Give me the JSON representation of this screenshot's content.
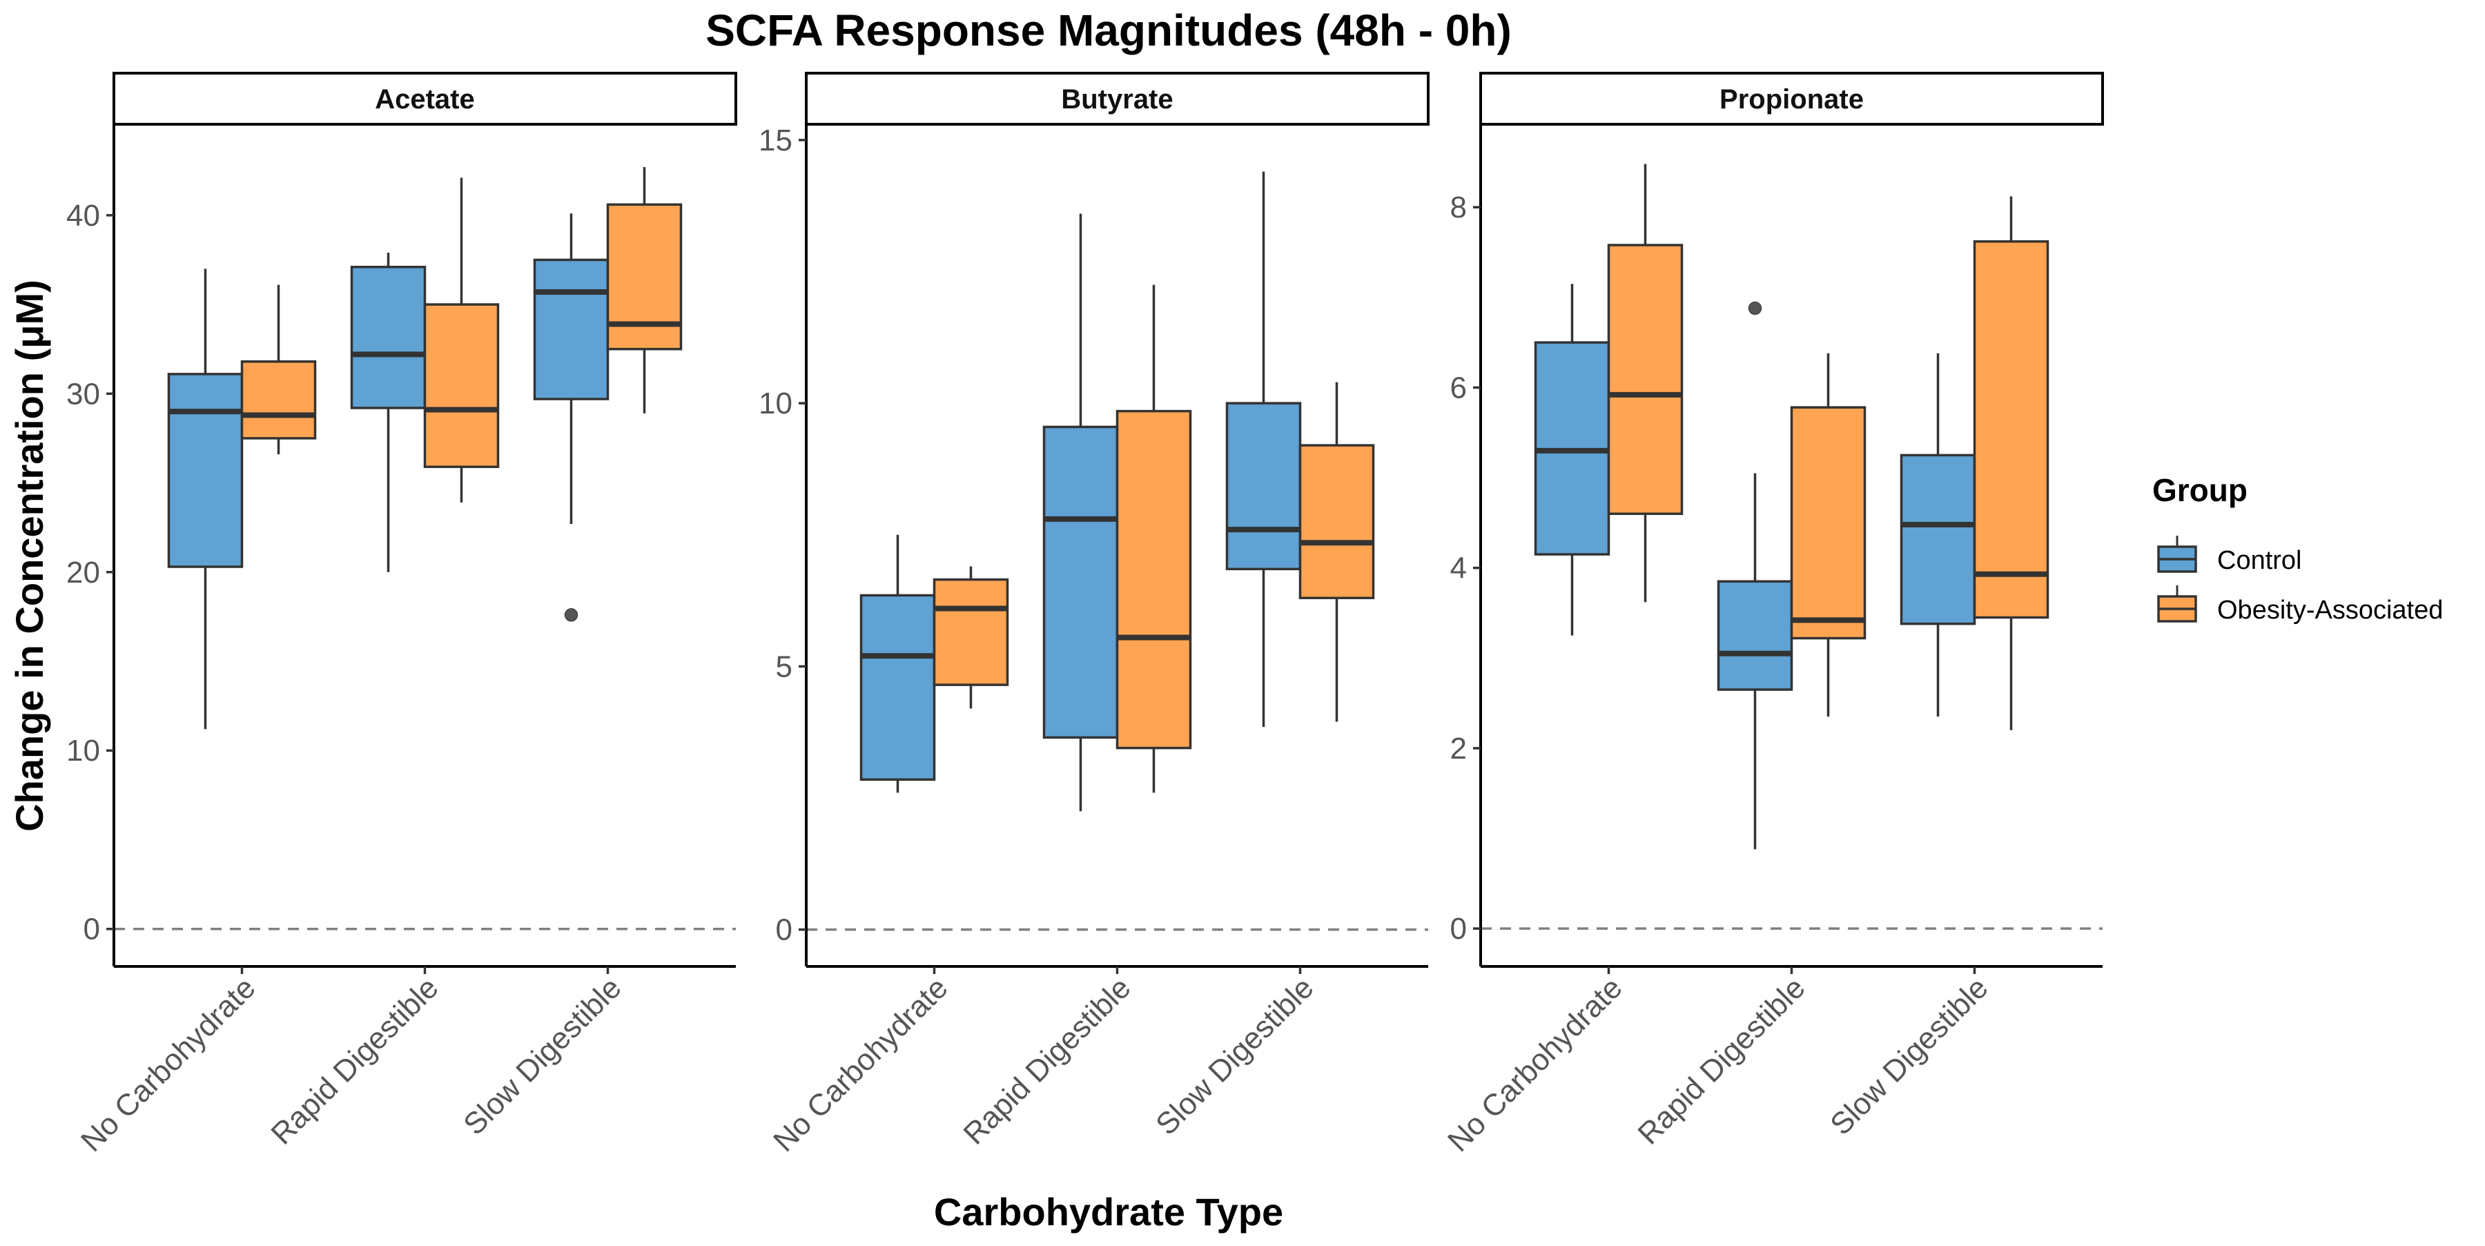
{
  "chart_data": {
    "type": "box",
    "title": "SCFA Response Magnitudes (48h - 0h)",
    "xlabel": "Carbohydrate Type",
    "ylabel": "Change in Concentration (μM)",
    "categories": [
      "No Carbohydrate",
      "Rapid Digestible",
      "Slow Digestible"
    ],
    "legend": {
      "title": "Group",
      "position": "right",
      "items": [
        {
          "name": "Control",
          "color": "#5fa2d3"
        },
        {
          "name": "Obesity-Associated",
          "color": "#ffa452"
        }
      ]
    },
    "reference_line": {
      "y": 0,
      "style": "dashed",
      "color": "#808080"
    },
    "grid": false,
    "panels": [
      {
        "name": "Acetate",
        "ylim": [
          -2.1,
          45.1
        ],
        "yticks": [
          0,
          10,
          20,
          30,
          40
        ],
        "series": [
          {
            "name": "Control",
            "boxes": [
              {
                "category": "No Carbohydrate",
                "min": 11.2,
                "q1": 20.3,
                "median": 29.0,
                "q3": 31.1,
                "max": 37.0,
                "outliers": []
              },
              {
                "category": "Rapid Digestible",
                "min": 20.0,
                "q1": 29.2,
                "median": 32.2,
                "q3": 37.1,
                "max": 37.9,
                "outliers": []
              },
              {
                "category": "Slow Digestible",
                "min": 22.7,
                "q1": 29.7,
                "median": 35.7,
                "q3": 37.5,
                "max": 40.1,
                "outliers": [
                  17.6
                ]
              }
            ]
          },
          {
            "name": "Obesity-Associated",
            "boxes": [
              {
                "category": "No Carbohydrate",
                "min": 26.6,
                "q1": 27.5,
                "median": 28.8,
                "q3": 31.8,
                "max": 36.1,
                "outliers": []
              },
              {
                "category": "Rapid Digestible",
                "min": 23.9,
                "q1": 25.9,
                "median": 29.1,
                "q3": 35.0,
                "max": 42.1,
                "outliers": []
              },
              {
                "category": "Slow Digestible",
                "min": 28.9,
                "q1": 32.5,
                "median": 33.9,
                "q3": 40.6,
                "max": 42.7,
                "outliers": []
              }
            ]
          }
        ]
      },
      {
        "name": "Butyrate",
        "ylim": [
          -0.7,
          15.3
        ],
        "yticks": [
          0,
          5,
          10,
          15
        ],
        "series": [
          {
            "name": "Control",
            "boxes": [
              {
                "category": "No Carbohydrate",
                "min": 2.6,
                "q1": 2.85,
                "median": 5.2,
                "q3": 6.35,
                "max": 7.5,
                "outliers": []
              },
              {
                "category": "Rapid Digestible",
                "min": 2.25,
                "q1": 3.65,
                "median": 7.8,
                "q3": 9.55,
                "max": 13.6,
                "outliers": []
              },
              {
                "category": "Slow Digestible",
                "min": 3.85,
                "q1": 6.85,
                "median": 7.6,
                "q3": 10.0,
                "max": 14.4,
                "outliers": []
              }
            ]
          },
          {
            "name": "Obesity-Associated",
            "boxes": [
              {
                "category": "No Carbohydrate",
                "min": 4.2,
                "q1": 4.65,
                "median": 6.1,
                "q3": 6.65,
                "max": 6.9,
                "outliers": []
              },
              {
                "category": "Rapid Digestible",
                "min": 2.6,
                "q1": 3.45,
                "median": 5.55,
                "q3": 9.85,
                "max": 12.25,
                "outliers": []
              },
              {
                "category": "Slow Digestible",
                "min": 3.95,
                "q1": 6.3,
                "median": 7.35,
                "q3": 9.2,
                "max": 10.4,
                "outliers": []
              }
            ]
          }
        ]
      },
      {
        "name": "Propionate",
        "ylim": [
          -0.42,
          8.92
        ],
        "yticks": [
          0,
          2,
          4,
          6,
          8
        ],
        "series": [
          {
            "name": "Control",
            "boxes": [
              {
                "category": "No Carbohydrate",
                "min": 3.25,
                "q1": 4.15,
                "median": 5.3,
                "q3": 6.5,
                "max": 7.15,
                "outliers": []
              },
              {
                "category": "Rapid Digestible",
                "min": 0.88,
                "q1": 2.65,
                "median": 3.05,
                "q3": 3.85,
                "max": 5.05,
                "outliers": [
                  6.88
                ]
              },
              {
                "category": "Slow Digestible",
                "min": 2.35,
                "q1": 3.38,
                "median": 4.48,
                "q3": 5.25,
                "max": 6.38,
                "outliers": []
              }
            ]
          },
          {
            "name": "Obesity-Associated",
            "boxes": [
              {
                "category": "No Carbohydrate",
                "min": 3.62,
                "q1": 4.6,
                "median": 5.92,
                "q3": 7.58,
                "max": 8.48,
                "outliers": []
              },
              {
                "category": "Rapid Digestible",
                "min": 2.35,
                "q1": 3.22,
                "median": 3.42,
                "q3": 5.78,
                "max": 6.38,
                "outliers": []
              },
              {
                "category": "Slow Digestible",
                "min": 2.2,
                "q1": 3.45,
                "median": 3.93,
                "q3": 7.62,
                "max": 8.12,
                "outliers": []
              }
            ]
          }
        ]
      }
    ]
  }
}
